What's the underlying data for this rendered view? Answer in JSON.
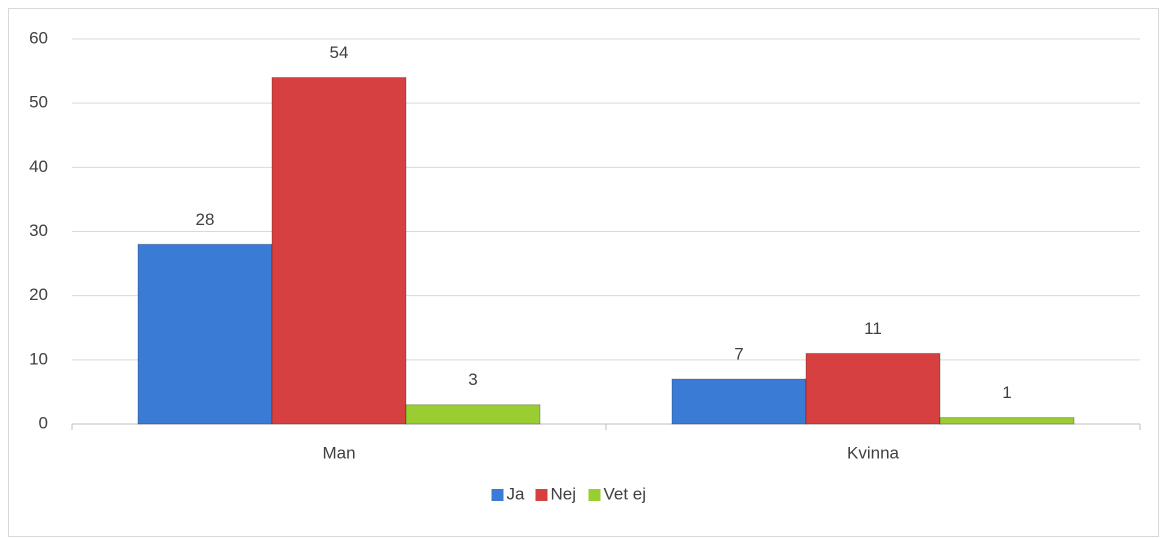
{
  "chart_data": {
    "type": "bar",
    "categories": [
      "Man",
      "Kvinna"
    ],
    "series": [
      {
        "name": "Ja",
        "color": "#3a7bd5",
        "values": [
          28,
          7
        ]
      },
      {
        "name": "Nej",
        "color": "#d64040",
        "values": [
          54,
          11
        ]
      },
      {
        "name": "Vet ej",
        "color": "#9acd32",
        "values": [
          3,
          1
        ]
      }
    ],
    "ylim": [
      0,
      60
    ],
    "yticks": [
      0,
      10,
      20,
      30,
      40,
      50,
      60
    ],
    "grid": true,
    "legend": "bottom"
  }
}
